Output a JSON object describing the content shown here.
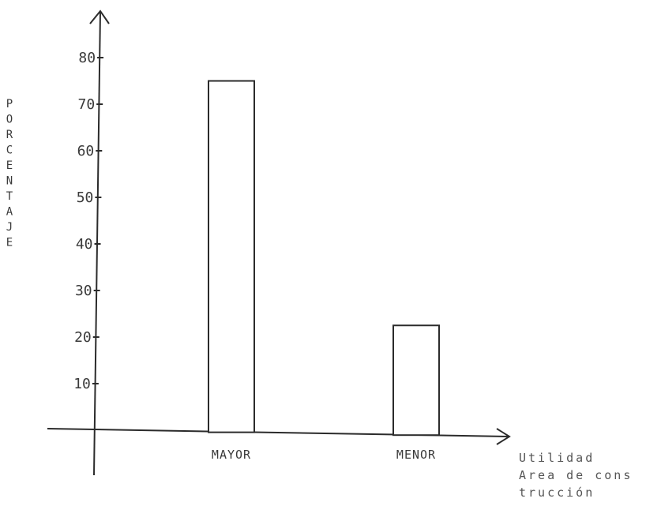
{
  "chart_data": {
    "type": "bar",
    "categories": [
      "MAYOR",
      "MENOR"
    ],
    "values": [
      75,
      22.5
    ],
    "ylabel": "PORCENTAJE",
    "xlabel_lines": [
      "Utilidad",
      "Area de cons",
      "trucción"
    ],
    "yticks": [
      10,
      20,
      30,
      40,
      50,
      60,
      70,
      80
    ],
    "ylim": [
      0,
      90
    ],
    "grid": false,
    "legend": "none"
  }
}
